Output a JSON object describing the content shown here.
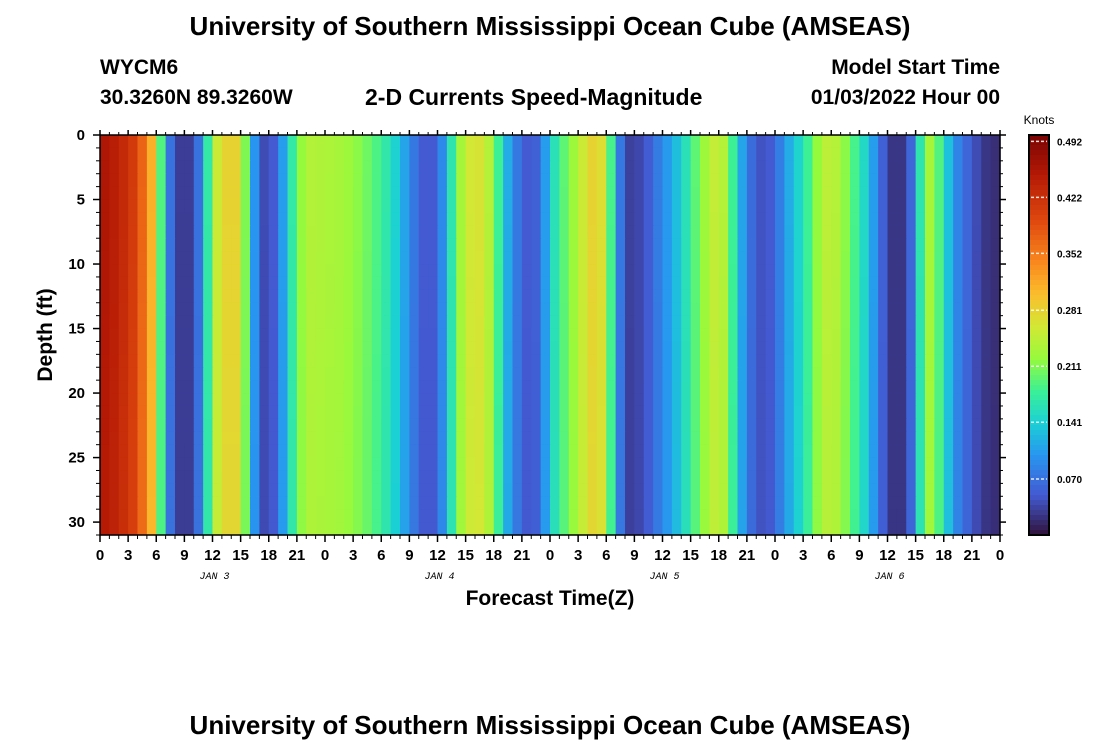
{
  "header": {
    "title": "University of Southern Mississippi Ocean Cube (AMSEAS)",
    "station_id": "WYCM6",
    "coordinates": "30.3260N  89.3260W",
    "plot_title": "2-D Currents Speed-Magnitude",
    "model_start_label": "Model Start Time",
    "model_start_value": "01/03/2022 Hour 00",
    "footer_title": "University of Southern Mississippi Ocean Cube (AMSEAS)"
  },
  "chart_data": {
    "type": "heatmap",
    "title": "2-D Currents Speed-Magnitude",
    "xlabel": "Forecast Time(Z)",
    "ylabel": "Depth (ft)",
    "x_unit": "hours from model start",
    "xlim": [
      0,
      96
    ],
    "ylim": [
      0,
      31
    ],
    "x_tick_values": [
      0,
      3,
      6,
      9,
      12,
      15,
      18,
      21,
      24,
      27,
      30,
      33,
      36,
      39,
      42,
      45,
      48,
      51,
      54,
      57,
      60,
      63,
      66,
      69,
      72,
      75,
      78,
      81,
      84,
      87,
      90,
      93,
      96
    ],
    "x_tick_labels": [
      "0",
      "3",
      "6",
      "9",
      "12",
      "15",
      "18",
      "21",
      "0",
      "3",
      "6",
      "9",
      "12",
      "15",
      "18",
      "21",
      "0",
      "3",
      "6",
      "9",
      "12",
      "15",
      "18",
      "21",
      "0",
      "3",
      "6",
      "9",
      "12",
      "15",
      "18",
      "21",
      "0"
    ],
    "day_label_hours": [
      12,
      36,
      60,
      84
    ],
    "day_labels": [
      "JAN 3",
      "JAN 4",
      "JAN 5",
      "JAN 6"
    ],
    "y_tick_values": [
      0,
      5,
      10,
      15,
      20,
      25,
      30
    ],
    "y_tick_labels": [
      "0",
      "5",
      "10",
      "15",
      "20",
      "25",
      "30"
    ],
    "colorbar": {
      "label": "Knots",
      "vmin": 0,
      "vmax": 0.5,
      "tick_values": [
        0.492,
        0.422,
        0.352,
        0.281,
        0.211,
        0.141,
        0.07
      ],
      "tick_labels": [
        "0.492",
        "0.422",
        "0.352",
        "0.281",
        "0.211",
        "0.141",
        "0.070"
      ]
    },
    "speed_by_hour_knots": {
      "hours": [
        0,
        2,
        4,
        6,
        7,
        8,
        9,
        10,
        11,
        12,
        13,
        14,
        15,
        16,
        17,
        18,
        19,
        20,
        21,
        22,
        24,
        26,
        28,
        30,
        32,
        33,
        34,
        35,
        36,
        37,
        38,
        39,
        40,
        41,
        42,
        43,
        44,
        45,
        46,
        47,
        48,
        49,
        50,
        51,
        52,
        53,
        54,
        55,
        56,
        58,
        60,
        62,
        63,
        64,
        65,
        66,
        67,
        68,
        69,
        70,
        71,
        72,
        73,
        74,
        75,
        76,
        77,
        78,
        79,
        80,
        81,
        82,
        83,
        84,
        85,
        86,
        87,
        88,
        89,
        90,
        91,
        92,
        93,
        94,
        95,
        96
      ],
      "speeds": [
        0.46,
        0.44,
        0.4,
        0.28,
        0.1,
        0.04,
        0.02,
        0.04,
        0.1,
        0.24,
        0.27,
        0.29,
        0.27,
        0.15,
        0.05,
        0.03,
        0.07,
        0.14,
        0.2,
        0.24,
        0.235,
        0.23,
        0.21,
        0.18,
        0.13,
        0.09,
        0.06,
        0.04,
        0.06,
        0.12,
        0.21,
        0.25,
        0.27,
        0.26,
        0.22,
        0.14,
        0.09,
        0.06,
        0.04,
        0.07,
        0.14,
        0.18,
        0.21,
        0.24,
        0.27,
        0.29,
        0.25,
        0.12,
        0.03,
        0.04,
        0.09,
        0.14,
        0.18,
        0.21,
        0.24,
        0.26,
        0.22,
        0.14,
        0.08,
        0.05,
        0.04,
        0.06,
        0.1,
        0.13,
        0.16,
        0.2,
        0.24,
        0.25,
        0.23,
        0.2,
        0.17,
        0.13,
        0.08,
        0.03,
        0.02,
        0.03,
        0.09,
        0.24,
        0.22,
        0.16,
        0.1,
        0.07,
        0.05,
        0.03,
        0.02,
        0.02
      ]
    }
  }
}
